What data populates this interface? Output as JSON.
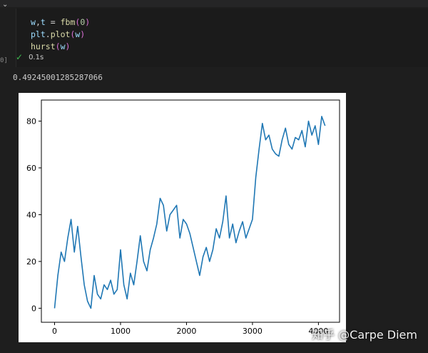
{
  "code_cell": {
    "lines": [
      "w,t = fbm(0)",
      "plt.plot(w)",
      "hurst(w)"
    ],
    "execution_count": "0]",
    "status_time": "0.1s",
    "status_icon": "check-icon"
  },
  "output": {
    "text": "0.49245001285287066"
  },
  "chart_data": {
    "type": "line",
    "xlim": [
      -200,
      4320
    ],
    "ylim": [
      -6,
      89
    ],
    "xticks": [
      0,
      1000,
      2000,
      3000,
      4000
    ],
    "xtick_labels": [
      "0",
      "1000",
      "2000",
      "3000",
      "4000"
    ],
    "yticks": [
      0,
      20,
      40,
      60,
      80
    ],
    "ytick_labels": [
      "0",
      "20",
      "40",
      "60",
      "80"
    ],
    "grid": false,
    "color": "#1f77b4",
    "series": [
      {
        "x": [
          0,
          50,
          100,
          150,
          200,
          250,
          300,
          350,
          400,
          450,
          500,
          550,
          600,
          650,
          700,
          750,
          800,
          850,
          900,
          950,
          1000,
          1050,
          1100,
          1150,
          1200,
          1250,
          1300,
          1350,
          1400,
          1450,
          1500,
          1550,
          1600,
          1650,
          1700,
          1750,
          1800,
          1850,
          1900,
          1950,
          2000,
          2050,
          2100,
          2150,
          2200,
          2250,
          2300,
          2350,
          2400,
          2450,
          2500,
          2550,
          2600,
          2650,
          2700,
          2750,
          2800,
          2850,
          2900,
          2950,
          3000,
          3050,
          3100,
          3150,
          3200,
          3250,
          3300,
          3350,
          3400,
          3450,
          3500,
          3550,
          3600,
          3650,
          3700,
          3750,
          3800,
          3850,
          3900,
          3950,
          4000,
          4050,
          4100
        ],
        "y": [
          0,
          14,
          24,
          20,
          30,
          38,
          24,
          35,
          22,
          10,
          3,
          0,
          14,
          6,
          4,
          10,
          8,
          12,
          6,
          8,
          25,
          10,
          4,
          15,
          10,
          20,
          31,
          20,
          16,
          25,
          30,
          36,
          47,
          44,
          33,
          40,
          42,
          44,
          30,
          38,
          36,
          32,
          26,
          20,
          14,
          22,
          26,
          20,
          25,
          34,
          30,
          37,
          48,
          30,
          36,
          28,
          33,
          37,
          30,
          34,
          38,
          56,
          68,
          79,
          72,
          74,
          68,
          66,
          65,
          72,
          77,
          70,
          68,
          73,
          72,
          76,
          69,
          80,
          74,
          78,
          70,
          82,
          78
        ]
      }
    ]
  },
  "watermark": "知乎 @Carpe Diem"
}
